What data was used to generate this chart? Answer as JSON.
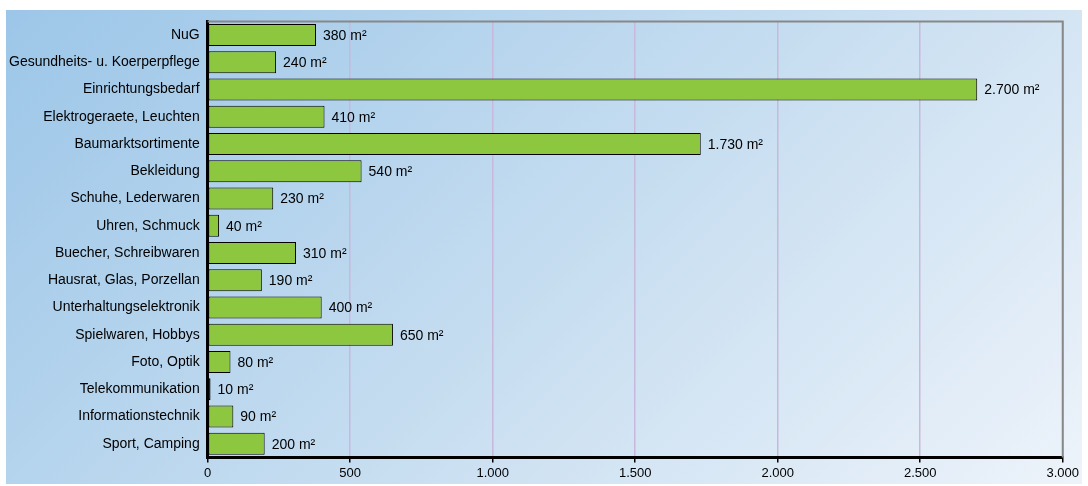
{
  "chart_data": {
    "type": "bar",
    "orientation": "horizontal",
    "categories": [
      "NuG",
      "Gesundheits- u. Koerperpflege",
      "Einrichtungsbedarf",
      "Elektrogeraete, Leuchten",
      "Baumarktsortimente",
      "Bekleidung",
      "Schuhe, Lederwaren",
      "Uhren, Schmuck",
      "Buecher, Schreibwaren",
      "Hausrat, Glas, Porzellan",
      "Unterhaltungselektronik",
      "Spielwaren, Hobbys",
      "Foto, Optik",
      "Telekommunikation",
      "Informationstechnik",
      "Sport, Camping"
    ],
    "values": [
      380,
      240,
      2700,
      410,
      1730,
      540,
      230,
      40,
      310,
      190,
      400,
      650,
      80,
      10,
      90,
      200
    ],
    "value_labels": [
      "380 m²",
      "240 m²",
      "2.700 m²",
      "410 m²",
      "1.730 m²",
      "540 m²",
      "230 m²",
      "40 m²",
      "310 m²",
      "190 m²",
      "400 m²",
      "650 m²",
      "80 m²",
      "10 m²",
      "90 m²",
      "200 m²"
    ],
    "color": "#8dc63f",
    "xlim": [
      0,
      3000
    ],
    "xticks": [
      0,
      {
        "value": 500,
        "label": "500"
      },
      {
        "value": 1000,
        "label": "1.000"
      },
      {
        "value": 1500,
        "label": "1.500"
      },
      {
        "value": 2000,
        "label": "2.000"
      },
      {
        "value": 2500,
        "label": "2.500"
      },
      {
        "value": 3000,
        "label": "3.000"
      }
    ],
    "grid": "x",
    "legend": false
  }
}
